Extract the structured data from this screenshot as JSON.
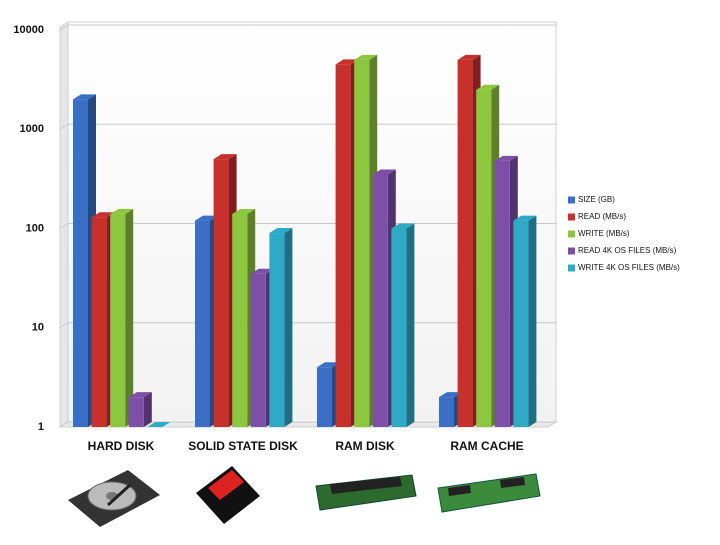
{
  "chart_data": {
    "type": "bar",
    "categories": [
      "HARD DISK",
      "SOLID STATE DISK",
      "RAM DISK",
      "RAM CACHE"
    ],
    "series": [
      {
        "name": "SIZE (GB)",
        "color": "#3b6fc6",
        "values": [
          2000,
          120,
          4,
          2
        ]
      },
      {
        "name": "READ (MB/s)",
        "color": "#c8302c",
        "values": [
          130,
          500,
          4500,
          5000
        ]
      },
      {
        "name": "WRITE (MB/s)",
        "color": "#8dc63f",
        "values": [
          140,
          140,
          5000,
          2500
        ]
      },
      {
        "name": "READ 4K OS FILES (MB/s)",
        "color": "#7d4fa9",
        "values": [
          2,
          35,
          350,
          480
        ]
      },
      {
        "name": "WRITE 4K OS FILES (MB/s)",
        "color": "#2eaac7",
        "values": [
          1,
          90,
          100,
          120
        ]
      }
    ],
    "ylim": [
      1,
      10000
    ],
    "yticks": [
      1,
      10,
      100,
      1000,
      10000
    ],
    "log_scale": true,
    "grid": true,
    "legend_position": "right"
  }
}
